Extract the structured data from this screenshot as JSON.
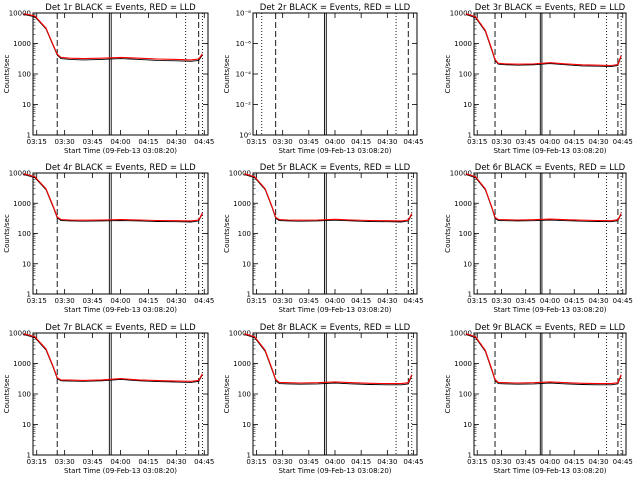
{
  "figure": {
    "panel_title_suffix": "BLACK = Events, RED = LLD"
  },
  "colors": {
    "events": "#000000",
    "lld": "#ff0000",
    "axes": "#000000",
    "background": "#ffffff"
  },
  "chart_data": [
    {
      "type": "line",
      "detector": "Det 1r",
      "title": "Det 1r BLACK = Events, RED = LLD",
      "xlabel": "Start Time (09-Feb-13 03:08:20)",
      "ylabel": "Counts/sec",
      "xticks": [
        "03:15",
        "03:30",
        "03:45",
        "04:00",
        "04:15",
        "04:30",
        "04:45"
      ],
      "yticks": [
        "1",
        "10",
        "100",
        "1000",
        "10000"
      ],
      "yscale": "log",
      "ylim": [
        1,
        10000
      ],
      "series": [
        {
          "name": "BLACK = Events",
          "x": [
            "03:08",
            "03:14",
            "03:20",
            "03:24",
            "03:26",
            "03:28",
            "03:33",
            "03:40",
            "03:50",
            "04:00",
            "04:10",
            "04:20",
            "04:30",
            "04:38",
            "04:42",
            "04:44"
          ],
          "values": [
            9000,
            7500,
            3000,
            800,
            420,
            320,
            300,
            290,
            300,
            320,
            300,
            280,
            270,
            260,
            280,
            420
          ]
        },
        {
          "name": "RED = LLD",
          "x": [
            "03:08",
            "03:14",
            "03:20",
            "03:24",
            "03:26",
            "03:28",
            "03:33",
            "03:40",
            "03:50",
            "04:00",
            "04:10",
            "04:20",
            "04:30",
            "04:38",
            "04:42",
            "04:44"
          ],
          "values": [
            9500,
            8000,
            3200,
            850,
            450,
            350,
            330,
            320,
            330,
            350,
            330,
            310,
            300,
            290,
            310,
            460
          ]
        }
      ]
    },
    {
      "type": "line",
      "detector": "Det 2r",
      "title": "Det 2r BLACK = Events, RED = LLD",
      "xlabel": "Start Time (09-Feb-13 03:08:20)",
      "ylabel": "Counts/sec",
      "xticks": [
        "03:15",
        "03:30",
        "03:45",
        "04:00",
        "04:15",
        "04:30",
        "04:45"
      ],
      "yticks": [
        "10⁰",
        "10⁻²",
        "10⁻⁴",
        "10⁻⁶",
        "10⁻⁸"
      ],
      "yscale": "log",
      "ylim": [
        1e-08,
        1
      ],
      "series": []
    },
    {
      "type": "line",
      "detector": "Det 3r",
      "title": "Det 3r BLACK = Events, RED = LLD",
      "xlabel": "Start Time (09-Feb-13 03:08:20)",
      "ylabel": "Counts/sec",
      "xticks": [
        "03:15",
        "03:30",
        "03:45",
        "04:00",
        "04:15",
        "04:30",
        "04:45"
      ],
      "yticks": [
        "1",
        "10",
        "100",
        "1000",
        "10000"
      ],
      "yscale": "log",
      "ylim": [
        1,
        10000
      ],
      "series": [
        {
          "name": "BLACK = Events",
          "x": [
            "03:08",
            "03:14",
            "03:20",
            "03:24",
            "03:26",
            "03:28",
            "03:33",
            "03:40",
            "03:50",
            "04:00",
            "04:10",
            "04:20",
            "04:30",
            "04:38",
            "04:42",
            "04:44"
          ],
          "values": [
            9000,
            7000,
            2500,
            600,
            280,
            210,
            200,
            195,
            200,
            220,
            200,
            185,
            180,
            175,
            190,
            380
          ]
        },
        {
          "name": "RED = LLD",
          "x": [
            "03:08",
            "03:14",
            "03:20",
            "03:24",
            "03:26",
            "03:28",
            "03:33",
            "03:40",
            "03:50",
            "04:00",
            "04:10",
            "04:20",
            "04:30",
            "04:38",
            "04:42",
            "04:44"
          ],
          "values": [
            9500,
            7500,
            2700,
            650,
            300,
            225,
            215,
            210,
            215,
            235,
            215,
            200,
            195,
            190,
            205,
            400
          ]
        }
      ]
    },
    {
      "type": "line",
      "detector": "Det 4r",
      "title": "Det 4r BLACK = Events, RED = LLD",
      "xlabel": "Start Time (09-Feb-13 03:08:20)",
      "ylabel": "Counts/sec",
      "xticks": [
        "03:15",
        "03:30",
        "03:45",
        "04:00",
        "04:15",
        "04:30",
        "04:45"
      ],
      "yticks": [
        "1",
        "10",
        "100",
        "1000",
        "10000"
      ],
      "yscale": "log",
      "ylim": [
        1,
        10000
      ],
      "series": [
        {
          "name": "BLACK = Events",
          "x": [
            "03:08",
            "03:14",
            "03:20",
            "03:24",
            "03:26",
            "03:28",
            "03:33",
            "03:40",
            "03:50",
            "04:00",
            "04:10",
            "04:20",
            "04:30",
            "04:38",
            "04:42",
            "04:44"
          ],
          "values": [
            9000,
            7000,
            2800,
            700,
            330,
            270,
            260,
            255,
            260,
            270,
            260,
            250,
            245,
            240,
            260,
            450
          ]
        },
        {
          "name": "RED = LLD",
          "x": [
            "03:08",
            "03:14",
            "03:20",
            "03:24",
            "03:26",
            "03:28",
            "03:33",
            "03:40",
            "03:50",
            "04:00",
            "04:10",
            "04:20",
            "04:30",
            "04:38",
            "04:42",
            "04:44"
          ],
          "values": [
            9500,
            7500,
            3000,
            750,
            350,
            290,
            280,
            275,
            280,
            290,
            280,
            270,
            265,
            260,
            280,
            480
          ]
        }
      ]
    },
    {
      "type": "line",
      "detector": "Det 5r",
      "title": "Det 5r BLACK = Events, RED = LLD",
      "xlabel": "Start Time (09-Feb-13 03:08:20)",
      "ylabel": "Counts/sec",
      "xticks": [
        "03:15",
        "03:30",
        "03:45",
        "04:00",
        "04:15",
        "04:30",
        "04:45"
      ],
      "yticks": [
        "1",
        "10",
        "100",
        "1000",
        "10000"
      ],
      "yscale": "log",
      "ylim": [
        1,
        10000
      ],
      "series": [
        {
          "name": "BLACK = Events",
          "x": [
            "03:08",
            "03:14",
            "03:20",
            "03:24",
            "03:26",
            "03:28",
            "03:33",
            "03:40",
            "03:50",
            "04:00",
            "04:10",
            "04:20",
            "04:30",
            "04:38",
            "04:42",
            "04:44"
          ],
          "values": [
            9000,
            7000,
            2800,
            700,
            320,
            270,
            260,
            255,
            260,
            275,
            260,
            250,
            245,
            240,
            260,
            420
          ]
        },
        {
          "name": "RED = LLD",
          "x": [
            "03:08",
            "03:14",
            "03:20",
            "03:24",
            "03:26",
            "03:28",
            "03:33",
            "03:40",
            "03:50",
            "04:00",
            "04:10",
            "04:20",
            "04:30",
            "04:38",
            "04:42",
            "04:44"
          ],
          "values": [
            9500,
            7500,
            3000,
            750,
            340,
            290,
            280,
            275,
            280,
            295,
            280,
            270,
            265,
            260,
            280,
            450
          ]
        }
      ]
    },
    {
      "type": "line",
      "detector": "Det 6r",
      "title": "Det 6r BLACK = Events, RED = LLD",
      "xlabel": "Start Time (09-Feb-13 03:08:20)",
      "ylabel": "Counts/sec",
      "xticks": [
        "03:15",
        "03:30",
        "03:45",
        "04:00",
        "04:15",
        "04:30",
        "04:45"
      ],
      "yticks": [
        "1",
        "10",
        "100",
        "1000",
        "10000"
      ],
      "yscale": "log",
      "ylim": [
        1,
        10000
      ],
      "series": [
        {
          "name": "BLACK = Events",
          "x": [
            "03:08",
            "03:14",
            "03:20",
            "03:24",
            "03:26",
            "03:28",
            "03:33",
            "03:40",
            "03:50",
            "04:00",
            "04:10",
            "04:20",
            "04:30",
            "04:38",
            "04:42",
            "04:44"
          ],
          "values": [
            9000,
            7000,
            2800,
            700,
            320,
            270,
            265,
            260,
            265,
            280,
            265,
            255,
            250,
            245,
            265,
            430
          ]
        },
        {
          "name": "RED = LLD",
          "x": [
            "03:08",
            "03:14",
            "03:20",
            "03:24",
            "03:26",
            "03:28",
            "03:33",
            "03:40",
            "03:50",
            "04:00",
            "04:10",
            "04:20",
            "04:30",
            "04:38",
            "04:42",
            "04:44"
          ],
          "values": [
            9500,
            7500,
            3000,
            750,
            340,
            290,
            285,
            280,
            285,
            300,
            285,
            275,
            270,
            265,
            285,
            460
          ]
        }
      ]
    },
    {
      "type": "line",
      "detector": "Det 7r",
      "title": "Det 7r BLACK = Events, RED = LLD",
      "xlabel": "Start Time (09-Feb-13 03:08:20)",
      "ylabel": "Counts/sec",
      "xticks": [
        "03:15",
        "03:30",
        "03:45",
        "04:00",
        "04:15",
        "04:30",
        "04:45"
      ],
      "yticks": [
        "1",
        "10",
        "100",
        "1000",
        "10000"
      ],
      "yscale": "log",
      "ylim": [
        1,
        10000
      ],
      "series": [
        {
          "name": "BLACK = Events",
          "x": [
            "03:08",
            "03:14",
            "03:20",
            "03:24",
            "03:26",
            "03:28",
            "03:33",
            "03:40",
            "03:50",
            "04:00",
            "04:10",
            "04:20",
            "04:30",
            "04:38",
            "04:42",
            "04:44"
          ],
          "values": [
            9000,
            7000,
            2800,
            700,
            320,
            270,
            265,
            260,
            270,
            300,
            270,
            255,
            245,
            240,
            260,
            430
          ]
        },
        {
          "name": "RED = LLD",
          "x": [
            "03:08",
            "03:14",
            "03:20",
            "03:24",
            "03:26",
            "03:28",
            "03:33",
            "03:40",
            "03:50",
            "04:00",
            "04:10",
            "04:20",
            "04:30",
            "04:38",
            "04:42",
            "04:44"
          ],
          "values": [
            9500,
            7500,
            3000,
            750,
            340,
            290,
            285,
            280,
            290,
            320,
            290,
            275,
            265,
            260,
            280,
            460
          ]
        }
      ]
    },
    {
      "type": "line",
      "detector": "Det 8r",
      "title": "Det 8r BLACK = Events, RED = LLD",
      "xlabel": "Start Time (09-Feb-13 03:08:20)",
      "ylabel": "Counts/sec",
      "xticks": [
        "03:15",
        "03:30",
        "03:45",
        "04:00",
        "04:15",
        "04:30",
        "04:45"
      ],
      "yticks": [
        "1",
        "10",
        "100",
        "1000",
        "10000"
      ],
      "yscale": "log",
      "ylim": [
        1,
        10000
      ],
      "series": [
        {
          "name": "BLACK = Events",
          "x": [
            "03:08",
            "03:14",
            "03:20",
            "03:24",
            "03:26",
            "03:28",
            "03:33",
            "03:40",
            "03:50",
            "04:00",
            "04:10",
            "04:20",
            "04:30",
            "04:38",
            "04:42",
            "04:44"
          ],
          "values": [
            9000,
            7000,
            2500,
            600,
            280,
            220,
            215,
            210,
            215,
            230,
            215,
            205,
            200,
            200,
            215,
            400
          ]
        },
        {
          "name": "RED = LLD",
          "x": [
            "03:08",
            "03:14",
            "03:20",
            "03:24",
            "03:26",
            "03:28",
            "03:33",
            "03:40",
            "03:50",
            "04:00",
            "04:10",
            "04:20",
            "04:30",
            "04:38",
            "04:42",
            "04:44"
          ],
          "values": [
            9500,
            7500,
            2700,
            650,
            300,
            240,
            235,
            230,
            235,
            250,
            235,
            225,
            220,
            220,
            235,
            430
          ]
        }
      ]
    },
    {
      "type": "line",
      "detector": "Det 9r",
      "title": "Det 9r BLACK = Events, RED = LLD",
      "xlabel": "Start Time (09-Feb-13 03:08:20)",
      "ylabel": "Counts/sec",
      "xticks": [
        "03:15",
        "03:30",
        "03:45",
        "04:00",
        "04:15",
        "04:30",
        "04:45"
      ],
      "yticks": [
        "1",
        "10",
        "100",
        "1000",
        "10000"
      ],
      "yscale": "log",
      "ylim": [
        1,
        10000
      ],
      "series": [
        {
          "name": "BLACK = Events",
          "x": [
            "03:08",
            "03:14",
            "03:20",
            "03:24",
            "03:26",
            "03:28",
            "03:33",
            "03:40",
            "03:50",
            "04:00",
            "04:10",
            "04:20",
            "04:30",
            "04:38",
            "04:42",
            "04:44"
          ],
          "values": [
            9000,
            7000,
            2500,
            600,
            280,
            220,
            215,
            210,
            215,
            230,
            215,
            205,
            200,
            200,
            215,
            400
          ]
        },
        {
          "name": "RED = LLD",
          "x": [
            "03:08",
            "03:14",
            "03:20",
            "03:24",
            "03:26",
            "03:28",
            "03:33",
            "03:40",
            "03:50",
            "04:00",
            "04:10",
            "04:20",
            "04:30",
            "04:38",
            "04:42",
            "04:44"
          ],
          "values": [
            9500,
            7500,
            2700,
            650,
            300,
            240,
            235,
            230,
            235,
            250,
            235,
            225,
            220,
            220,
            235,
            430
          ]
        }
      ]
    }
  ],
  "markers": {
    "dashed_times": [
      "03:26",
      "04:42"
    ],
    "solid_times": [
      "03:54",
      "03:55"
    ],
    "dotted_times": [
      "04:35",
      "04:44"
    ],
    "det2_dotted_times": [
      "03:18",
      "04:35"
    ]
  }
}
